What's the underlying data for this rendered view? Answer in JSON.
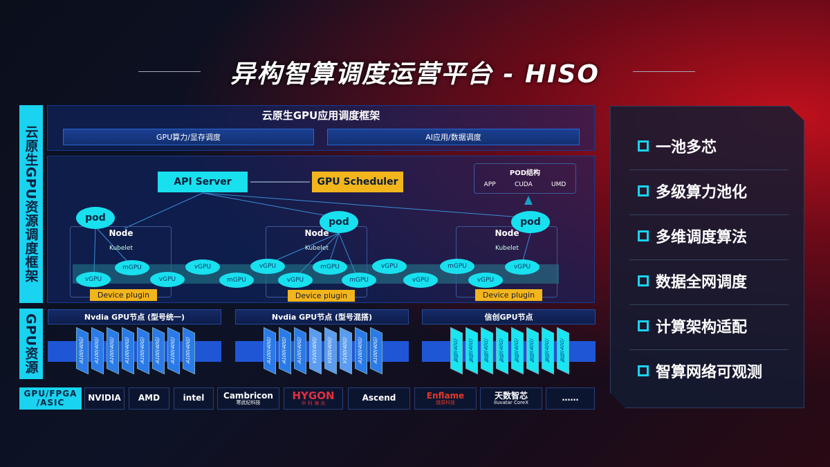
{
  "title": "异构智算调度运营平台 - HISO",
  "left_labels": {
    "framework": "云原生GPU资源调度框架",
    "resource": "GPU资源",
    "hardware": "GPU/FPGA /ASIC"
  },
  "app_framework": {
    "title": "云原生GPU应用调度框架",
    "items": [
      "GPU算力/显存调度",
      "AI应用/数据调度"
    ]
  },
  "control": {
    "api_server": "API Server",
    "gpu_scheduler": "GPU Scheduler",
    "pod_structure": {
      "title": "POD结构",
      "items": [
        "APP",
        "CUDA",
        "UMD"
      ]
    }
  },
  "nodes": [
    {
      "node": "Node",
      "kubelet": "Kubelet",
      "pod": "pod",
      "plugin": "Device plugin"
    },
    {
      "node": "Node",
      "kubelet": "Kubelet",
      "pod": "pod",
      "plugin": "Device plugin"
    },
    {
      "node": "Node",
      "kubelet": "Kubelet",
      "pod": "pod",
      "plugin": "Device plugin"
    }
  ],
  "virtual_gpus": [
    "vGPU",
    "mGPU",
    "vGPU",
    "vGPU",
    "mGPU",
    "vGPU",
    "vGPU",
    "mGPU",
    "mGPU",
    "vGPU",
    "vGPU",
    "mGPU",
    "vGPU",
    "vGPU"
  ],
  "gpu_nodes": [
    {
      "title": "Nvdia GPU节点 (型号统一)",
      "cards": [
        "A100(40G)",
        "A100(40G)",
        "A100(40G)",
        "A100(40G)",
        "A100(40G)",
        "A100(40G)",
        "A100(40G)",
        "A100(40G)"
      ]
    },
    {
      "title": "Nvdia GPU节点 (型号混搭)",
      "cards": [
        "A100(40G)",
        "A100(40G)",
        "A100(40G)",
        "V100(40G)",
        "V100(40G)",
        "V100(40G)",
        "A100(40G)",
        "A100(40G)"
      ]
    },
    {
      "title": "信创GPU节点",
      "cards": [
        "智铠(40G)",
        "智铠(40G)",
        "智铠(40G)",
        "智铠(40G)",
        "智铠(40G)",
        "智铠(40G)",
        "智铠(40G)",
        "智铠(40G)"
      ]
    }
  ],
  "vendors": [
    {
      "name": "NVIDIA"
    },
    {
      "name": "AMD"
    },
    {
      "name": "intel"
    },
    {
      "name": "Cambricon",
      "sub": "寒武纪科技"
    },
    {
      "name": "HYGON",
      "sub": "中 科 海 光"
    },
    {
      "name": "Ascend"
    },
    {
      "name": "Enflame",
      "sub": "燧原科技"
    },
    {
      "name": "天数智芯",
      "sub": "Iluvatar CoreX"
    },
    {
      "name": "……"
    }
  ],
  "features": [
    "一池多芯",
    "多级算力池化",
    "多维调度算法",
    "数据全网调度",
    "计算架构适配",
    "智算网络可观测"
  ],
  "colors": {
    "cyan": "#19d3f0",
    "orange": "#f2b51c",
    "blue": "#1f56d6",
    "red": "#c0101c"
  }
}
